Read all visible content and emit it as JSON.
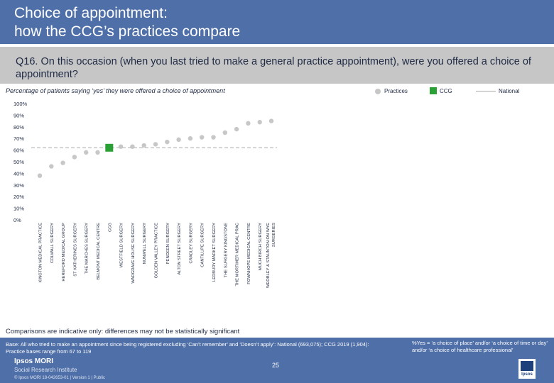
{
  "header": {
    "title_line1": "Choice of appointment:",
    "title_line2": "how the CCG’s practices compare"
  },
  "question": "Q16. On this occasion (when you last tried to make a general practice appointment), were you offered a choice of appointment?",
  "subtitle": "Percentage of patients saying ‘yes’ they were offered a choice of appointment",
  "legend": {
    "practices": "Practices",
    "ccg": "CCG",
    "national": "National"
  },
  "colors": {
    "header": "#4f6fa8",
    "practice": "#c7c7c7",
    "ccg": "#2aa035",
    "national": "#a9a9a9",
    "text": "#1f2a44"
  },
  "chart_data": {
    "type": "scatter",
    "title": "Percentage of patients saying ‘yes’ they were offered a choice of appointment",
    "ylim": [
      0,
      100
    ],
    "yticks": [
      "0%",
      "10%",
      "20%",
      "30%",
      "40%",
      "50%",
      "60%",
      "70%",
      "80%",
      "90%",
      "100%"
    ],
    "national": 62,
    "categories": [
      "KINGTON MEDICAL PRACTICE",
      "COLWALL SURGERY",
      "HEREFORD MEDICAL GROUP",
      "ST KATHERINES SURGERY",
      "THE MARCHES SURGERY",
      "BELMONT MEDICAL CENTRE",
      "CCG",
      "WESTFIELD SURGERY",
      "WARGRAVE HOUSE SURGERY",
      "NUNWELL SURGERY",
      "GOLDEN VALLEY PRACTICE",
      "PENDEEN SURGERY",
      "ALTON STREET SURGERY",
      "CRADLEY SURGERY",
      "CANTILUPE SURGERY",
      "LEDBURY MARKET SURGERY",
      "THE SURGERY KINGSTONE",
      "THE MORTIMER MEDICAL PRAC",
      "FOWNHOPE MEDICAL CENTRE",
      "MUCH BIRCH SURGERY",
      "WEOBLEY & STAUNTON ON WYE SURGERIES"
    ],
    "values": [
      38,
      46,
      49,
      54,
      58,
      58,
      62,
      63,
      63,
      64,
      65,
      67,
      69,
      70,
      71,
      71,
      75,
      78,
      83,
      84,
      85
    ],
    "point_types": [
      "practice",
      "practice",
      "practice",
      "practice",
      "practice",
      "practice",
      "ccg",
      "practice",
      "practice",
      "practice",
      "practice",
      "practice",
      "practice",
      "practice",
      "practice",
      "practice",
      "practice",
      "practice",
      "practice",
      "practice",
      "practice"
    ]
  },
  "comparisons": "Comparisons are indicative only: differences may not be statistically significant",
  "footer": {
    "base": "Base: All who tried to make an appointment since being registered excluding ‘Can’t remember’ and ‘Doesn’t apply’: National (693,075); CCG 2019 (1,904): Practice bases range from 67 to 119",
    "yes_note": "%Yes = ‘a choice of place’ and/or ‘a choice of time or day’ and/or ‘a choice of healthcare professional’",
    "page_number": "25",
    "brand": "Ipsos MORI",
    "brand_sub": "Social Research Institute",
    "ref": "© Ipsos MORI     18-042653-01 | Version 1 | Public",
    "logo_text": "Ipsos"
  }
}
